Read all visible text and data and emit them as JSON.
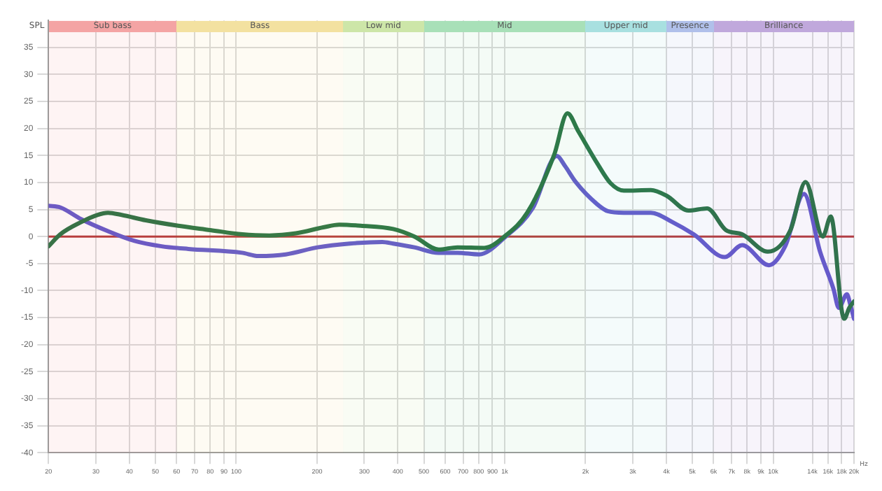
{
  "chart_data": {
    "type": "line",
    "ylabel": "SPL",
    "log": "x",
    "grid": true,
    "legend": false,
    "marker": "none",
    "line_style": "solid",
    "xlim": [
      20,
      20000
    ],
    "ylim": [
      -40,
      40
    ],
    "xticks": [
      20,
      30,
      40,
      50,
      60,
      70,
      80,
      90,
      100,
      200,
      300,
      400,
      500,
      600,
      700,
      800,
      900,
      {
        "value": 1000,
        "label": "1k"
      },
      {
        "value": 2000,
        "label": "2k"
      },
      {
        "value": 3000,
        "label": "3k"
      },
      {
        "value": 4000,
        "label": "4k"
      },
      {
        "value": 5000,
        "label": "5k"
      },
      {
        "value": 6000,
        "label": "6k"
      },
      {
        "value": 7000,
        "label": "7k"
      },
      {
        "value": 8000,
        "label": "8k"
      },
      {
        "value": 9000,
        "label": "9k"
      },
      {
        "value": 10000,
        "label": "10k"
      },
      {
        "value": 14000,
        "label": "14k"
      },
      {
        "value": 16000,
        "label": "16k"
      },
      {
        "value": 18000,
        "label": "18k"
      },
      {
        "value": 20000,
        "label": "20k"
      }
    ],
    "xlabel": "Hz",
    "yticks": [
      -40,
      -35,
      -30,
      -25,
      -20,
      -15,
      -10,
      -5,
      0,
      5,
      10,
      15,
      20,
      25,
      30,
      35
    ],
    "ref_lines": [
      {
        "axis": "y",
        "value": 0,
        "color": "#b03030"
      }
    ],
    "bands": [
      {
        "axis": "x",
        "from": 20,
        "to": 60,
        "label": "Sub bass",
        "color": "#f4a4a4"
      },
      {
        "axis": "x",
        "from": 60,
        "to": 250,
        "label": "Bass",
        "color": "#f3e1a0"
      },
      {
        "axis": "x",
        "from": 250,
        "to": 500,
        "label": "Low mid",
        "color": "#cde6a8"
      },
      {
        "axis": "x",
        "from": 500,
        "to": 2000,
        "label": "Mid",
        "color": "#a8e0b8"
      },
      {
        "axis": "x",
        "from": 2000,
        "to": 4000,
        "label": "Upper mid",
        "color": "#a8e0e0"
      },
      {
        "axis": "x",
        "from": 4000,
        "to": 6000,
        "label": "Presence",
        "color": "#b0c0ea"
      },
      {
        "axis": "x",
        "from": 6000,
        "to": 20000,
        "label": "Brilliance",
        "color": "#c0a8dc"
      }
    ],
    "series": [
      {
        "color": "#1e6b3a",
        "x": [
          20,
          22.1,
          26.5,
          30.4,
          33.3,
          37.4,
          46.1,
          60.8,
          80.1,
          105.5,
          133,
          167,
          211,
          242,
          291,
          384,
          461,
          567,
          667,
          839,
          1009,
          1213,
          1528,
          1713,
          1879,
          2208,
          2477,
          2778,
          3503,
          4022,
          4831,
          5675,
          6668,
          7662,
          9550,
          11600,
          13200,
          15300,
          16400,
          18000,
          18400,
          19200,
          20000
        ],
        "values": [
          -1.8,
          0.4,
          2.7,
          4.0,
          4.4,
          4.0,
          3.0,
          2.0,
          1.2,
          0.4,
          0.2,
          0.6,
          1.7,
          2.2,
          2.0,
          1.4,
          0,
          -2.4,
          -2.0,
          -2.1,
          0.2,
          4.4,
          15.1,
          22.8,
          19.5,
          13.6,
          9.9,
          8.5,
          8.6,
          7.5,
          4.8,
          5.2,
          1.2,
          0.4,
          -2.8,
          1.2,
          10.1,
          0,
          3.7,
          -13.7,
          -15.2,
          -13.2,
          -12.0
        ]
      },
      {
        "color": "#5b50c8",
        "x": [
          20,
          22.1,
          26.5,
          33.3,
          41.8,
          52.7,
          66.4,
          105,
          121,
          153,
          201,
          265,
          350,
          384,
          461,
          567,
          667,
          802,
          1009,
          1270,
          1563,
          1675,
          1838,
          2208,
          2421,
          2778,
          3503,
          4207,
          5058,
          6608,
          7662,
          9640,
          11080,
          13020,
          14950,
          16770,
          17560,
          18820,
          19400,
          20000
        ],
        "values": [
          5.7,
          5.4,
          3.2,
          1.0,
          -0.8,
          -1.8,
          -2.3,
          -3.0,
          -3.6,
          -3.3,
          -2.0,
          -1.3,
          -1.0,
          -1.3,
          -2.0,
          -3.0,
          -3.0,
          -3.3,
          0,
          5.2,
          14.9,
          13.1,
          10.1,
          6.0,
          4.7,
          4.4,
          4.4,
          2.7,
          0.4,
          -3.8,
          -1.6,
          -5.3,
          -1.8,
          7.9,
          -2.8,
          -9.7,
          -13.2,
          -10.7,
          -12.7,
          -15.2
        ]
      }
    ]
  }
}
